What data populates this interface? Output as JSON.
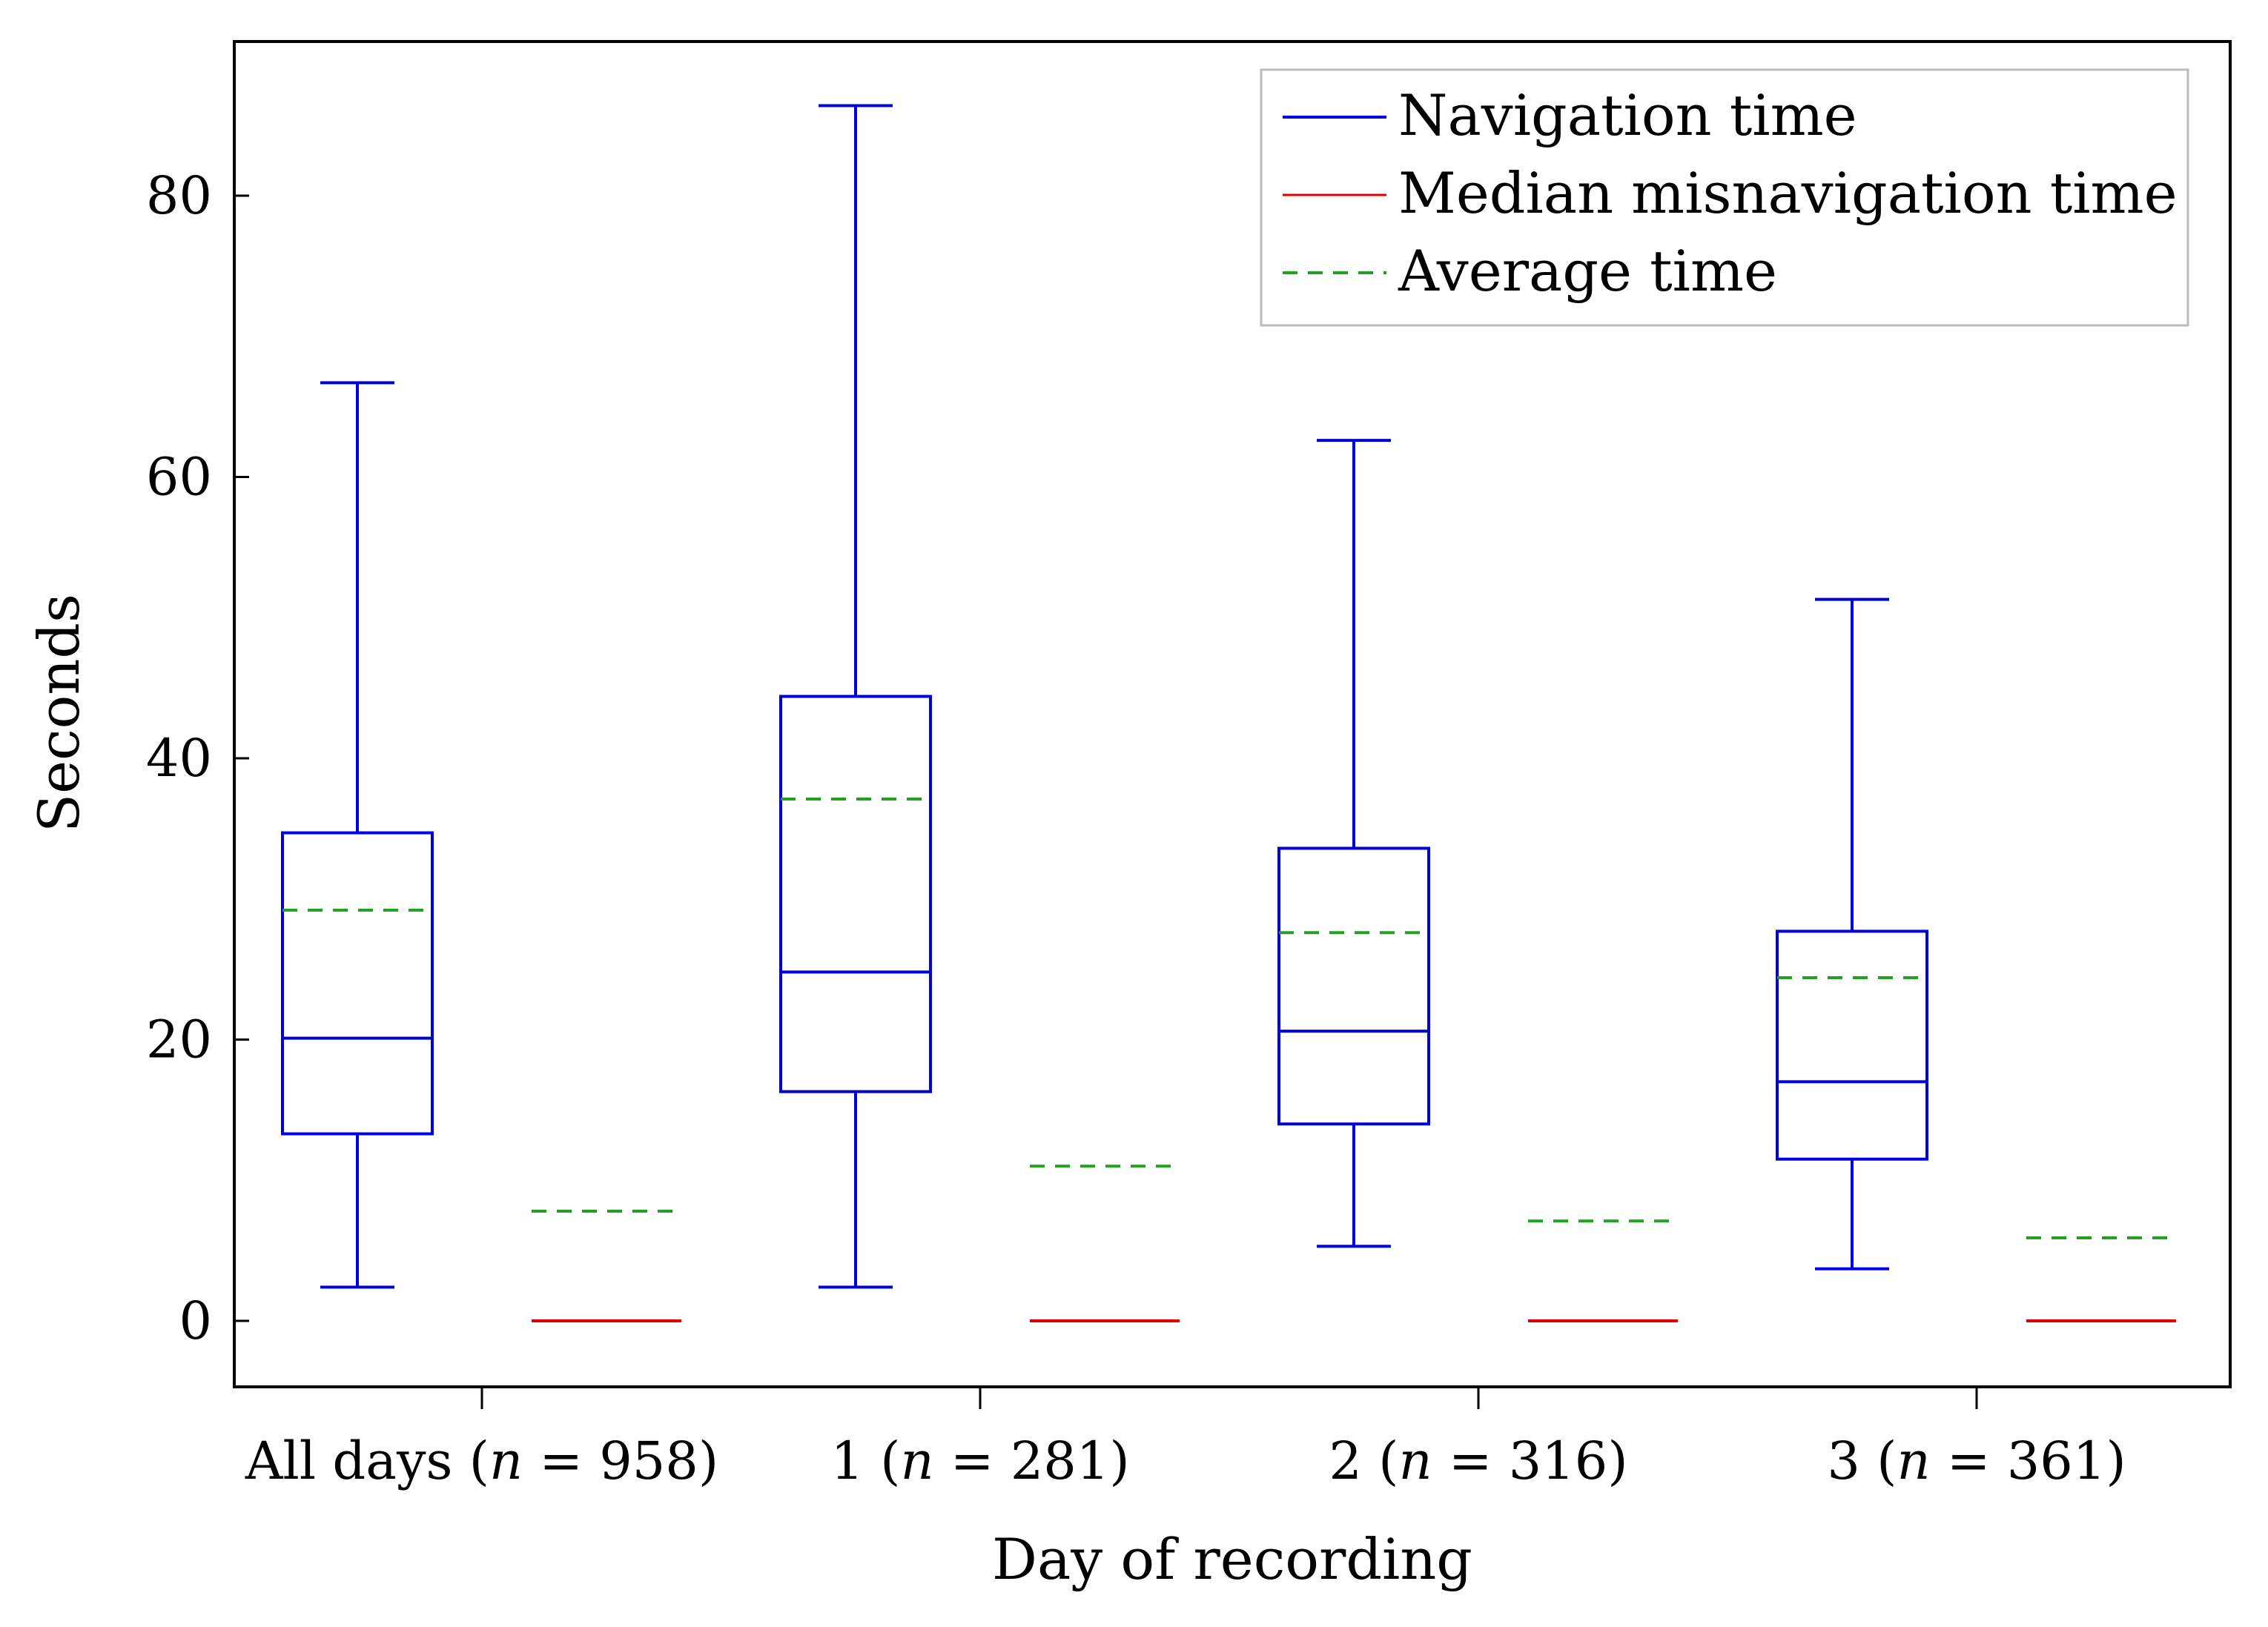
{
  "chart_data": {
    "type": "box",
    "title": "",
    "xlabel": "Day of recording",
    "ylabel": "Seconds",
    "ylim": [
      -4.3,
      90.5
    ],
    "yticks": [
      0,
      20,
      40,
      60,
      80
    ],
    "categories": [
      {
        "label": "All days (",
        "n_symbol": "n",
        "n_text": " = 958)"
      },
      {
        "label": "1 (",
        "n_symbol": "n",
        "n_text": " = 281)"
      },
      {
        "label": "2 (",
        "n_symbol": "n",
        "n_text": " = 316)"
      },
      {
        "label": "3 (",
        "n_symbol": "n",
        "n_text": " = 361)"
      }
    ],
    "legend": {
      "position": "top-right",
      "entries": [
        {
          "label": "Navigation time",
          "color": "#0000dd",
          "style": "solid"
        },
        {
          "label": "Median misnavigation time",
          "color": "#e00000",
          "style": "solid"
        },
        {
          "label": "Average time",
          "color": "#22a022",
          "style": "dashed"
        }
      ]
    },
    "series": [
      {
        "name": "Navigation time",
        "boxes": [
          {
            "category": "All days",
            "whisker_low": 2.4,
            "q1": 13.3,
            "median": 20.1,
            "q3": 34.7,
            "whisker_high": 66.7,
            "mean": 29.2
          },
          {
            "category": "1",
            "whisker_low": 2.4,
            "q1": 16.3,
            "median": 24.8,
            "q3": 44.4,
            "whisker_high": 86.4,
            "mean": 37.1
          },
          {
            "category": "2",
            "whisker_low": 5.3,
            "q1": 14.0,
            "median": 20.6,
            "q3": 33.6,
            "whisker_high": 62.6,
            "mean": 27.6
          },
          {
            "category": "3",
            "whisker_low": 3.7,
            "q1": 11.5,
            "median": 17.0,
            "q3": 27.7,
            "whisker_high": 51.3,
            "mean": 24.4
          }
        ]
      },
      {
        "name": "Median misnavigation time",
        "values": [
          0,
          0,
          0,
          0
        ],
        "means": [
          7.8,
          11.0,
          7.1,
          5.9
        ]
      }
    ],
    "colors": {
      "box": "#0000dd",
      "median_mis": "#e00000",
      "average": "#22a022",
      "axis": "#000000",
      "legend_border": "#bbbbbb"
    }
  }
}
